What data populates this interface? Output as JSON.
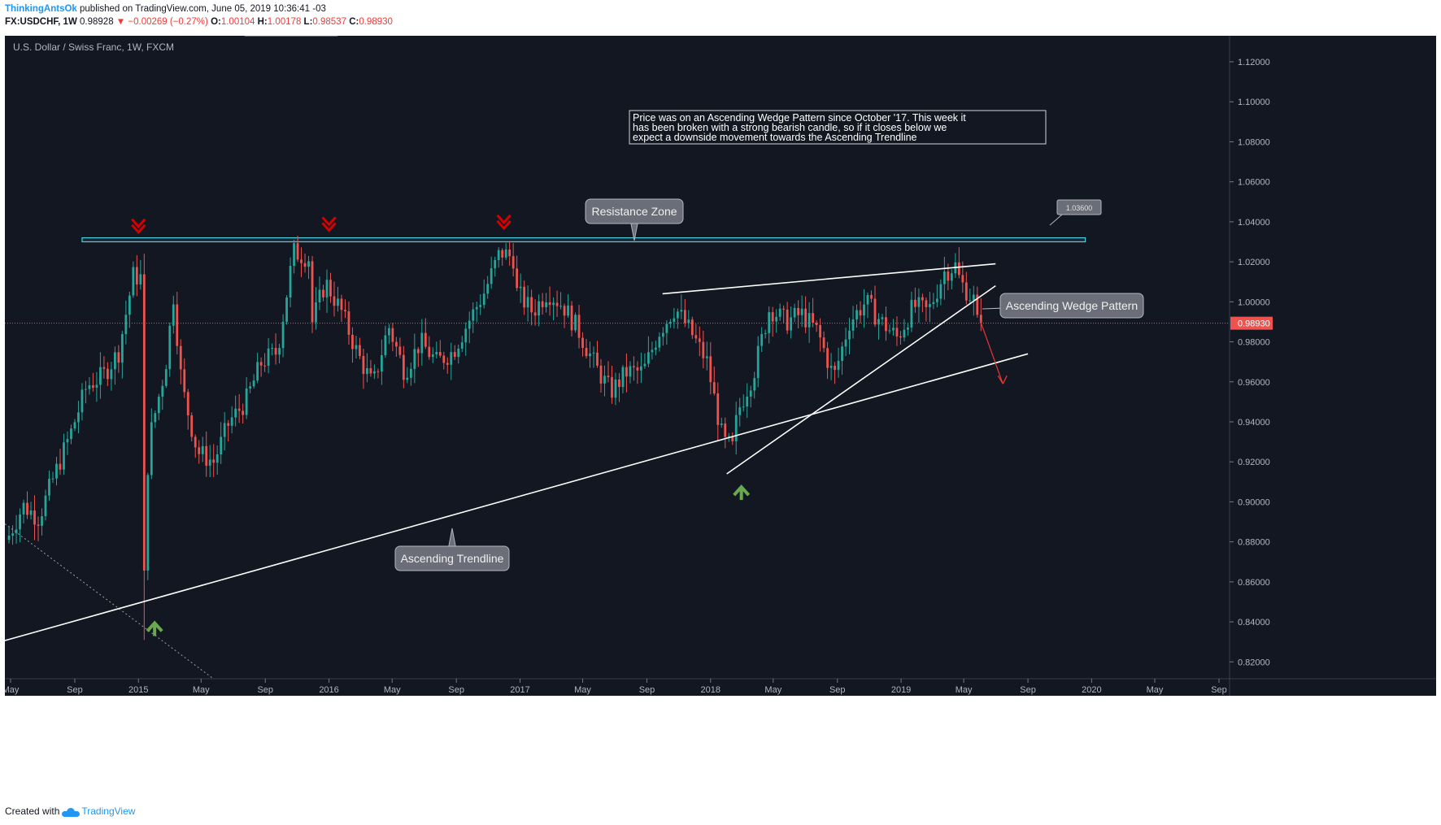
{
  "header": {
    "author": "ThinkingAntsOk",
    "published": "published on TradingView.com, June 05, 2019 10:36:41 -03",
    "symbol": "FX:USDCHF, 1W",
    "last": "0.98928",
    "change": "−0.00269 (−0.27%)",
    "o_label": "O:",
    "o_value": "1.00104",
    "h_label": "H:",
    "h_value": "1.00178",
    "l_label": "L:",
    "l_value": "0.98537",
    "c_label": "C:",
    "c_value": "0.98930"
  },
  "footer": {
    "created": "Created with",
    "brand": "TradingView"
  },
  "colors": {
    "background": "#131722",
    "up": "#26a69a",
    "down": "#ef5350",
    "resistance": "#4dd0e1",
    "arrow_red": "#d50000",
    "arrow_green": "#6aa84f"
  },
  "chart_data": {
    "type": "candlestick",
    "title": "U.S. Dollar / Swiss Franc, 1W, FXCM",
    "y_ticks": [
      "1.12000",
      "1.10000",
      "1.08000",
      "1.06000",
      "1.04000",
      "1.02000",
      "1.00000",
      "0.98000",
      "0.96000",
      "0.94000",
      "0.92000",
      "0.90000",
      "0.88000",
      "0.86000",
      "0.84000",
      "0.82000"
    ],
    "ylim": [
      0.812,
      1.133
    ],
    "x_ticks": [
      {
        "label": "May",
        "date": "2014-05"
      },
      {
        "label": "Sep",
        "date": "2014-09"
      },
      {
        "label": "2015",
        "date": "2015-01"
      },
      {
        "label": "May",
        "date": "2015-05"
      },
      {
        "label": "Sep",
        "date": "2015-09"
      },
      {
        "label": "2016",
        "date": "2016-01"
      },
      {
        "label": "May",
        "date": "2016-05"
      },
      {
        "label": "Sep",
        "date": "2016-09"
      },
      {
        "label": "2017",
        "date": "2017-01"
      },
      {
        "label": "May",
        "date": "2017-05"
      },
      {
        "label": "Sep",
        "date": "2017-09"
      },
      {
        "label": "2018",
        "date": "2018-01"
      },
      {
        "label": "May",
        "date": "2018-05"
      },
      {
        "label": "Sep",
        "date": "2018-09"
      },
      {
        "label": "2019",
        "date": "2019-01"
      },
      {
        "label": "May",
        "date": "2019-05"
      },
      {
        "label": "Sep",
        "date": "2019-09"
      },
      {
        "label": "2020",
        "date": "2020-01"
      },
      {
        "label": "May",
        "date": "2020-05"
      },
      {
        "label": "Sep",
        "date": "2020-09"
      }
    ],
    "price_anchors": [
      {
        "date": "2014-05",
        "value": 0.881
      },
      {
        "date": "2014-06",
        "value": 0.898
      },
      {
        "date": "2014-07",
        "value": 0.892
      },
      {
        "date": "2014-08",
        "value": 0.914
      },
      {
        "date": "2014-09",
        "value": 0.935
      },
      {
        "date": "2014-10",
        "value": 0.958
      },
      {
        "date": "2014-11",
        "value": 0.963
      },
      {
        "date": "2014-12",
        "value": 0.975
      },
      {
        "date": "2014-12-29",
        "value": 1.013
      },
      {
        "date": "2015-01-12",
        "value": 1.012
      },
      {
        "date": "2015-01-19",
        "value": 0.862
      },
      {
        "date": "2015-01-26",
        "value": 0.918
      },
      {
        "date": "2015-02",
        "value": 0.935
      },
      {
        "date": "2015-03",
        "value": 0.968
      },
      {
        "date": "2015-03-16",
        "value": 1.003
      },
      {
        "date": "2015-04",
        "value": 0.958
      },
      {
        "date": "2015-05",
        "value": 0.925
      },
      {
        "date": "2015-06",
        "value": 0.92
      },
      {
        "date": "2015-07",
        "value": 0.94
      },
      {
        "date": "2015-08",
        "value": 0.95
      },
      {
        "date": "2015-09",
        "value": 0.97
      },
      {
        "date": "2015-10",
        "value": 0.975
      },
      {
        "date": "2015-11",
        "value": 1.025
      },
      {
        "date": "2015-11-30",
        "value": 1.022
      },
      {
        "date": "2015-12",
        "value": 0.985
      },
      {
        "date": "2016-01",
        "value": 1.01
      },
      {
        "date": "2016-02",
        "value": 0.995
      },
      {
        "date": "2016-03",
        "value": 0.975
      },
      {
        "date": "2016-04",
        "value": 0.958
      },
      {
        "date": "2016-05",
        "value": 0.988
      },
      {
        "date": "2016-06",
        "value": 0.965
      },
      {
        "date": "2016-07",
        "value": 0.98
      },
      {
        "date": "2016-08",
        "value": 0.97
      },
      {
        "date": "2016-09",
        "value": 0.975
      },
      {
        "date": "2016-10",
        "value": 0.99
      },
      {
        "date": "2016-11",
        "value": 1.005
      },
      {
        "date": "2016-12",
        "value": 1.025
      },
      {
        "date": "2016-12-26",
        "value": 1.022
      },
      {
        "date": "2017-01",
        "value": 1.005
      },
      {
        "date": "2017-02",
        "value": 0.995
      },
      {
        "date": "2017-03",
        "value": 1.005
      },
      {
        "date": "2017-04",
        "value": 0.998
      },
      {
        "date": "2017-05",
        "value": 0.985
      },
      {
        "date": "2017-06",
        "value": 0.968
      },
      {
        "date": "2017-07",
        "value": 0.955
      },
      {
        "date": "2017-08",
        "value": 0.965
      },
      {
        "date": "2017-09",
        "value": 0.965
      },
      {
        "date": "2017-10",
        "value": 0.985
      },
      {
        "date": "2017-11",
        "value": 0.997
      },
      {
        "date": "2017-12",
        "value": 0.985
      },
      {
        "date": "2018-01",
        "value": 0.97
      },
      {
        "date": "2018-02",
        "value": 0.93
      },
      {
        "date": "2018-02-19",
        "value": 0.927
      },
      {
        "date": "2018-03",
        "value": 0.945
      },
      {
        "date": "2018-04",
        "value": 0.965
      },
      {
        "date": "2018-05",
        "value": 0.997
      },
      {
        "date": "2018-06",
        "value": 0.99
      },
      {
        "date": "2018-07",
        "value": 0.994
      },
      {
        "date": "2018-08",
        "value": 0.985
      },
      {
        "date": "2018-09",
        "value": 0.962
      },
      {
        "date": "2018-10",
        "value": 0.99
      },
      {
        "date": "2018-11",
        "value": 1.0
      },
      {
        "date": "2018-12",
        "value": 0.99
      },
      {
        "date": "2019-01",
        "value": 0.982
      },
      {
        "date": "2019-02",
        "value": 0.998
      },
      {
        "date": "2019-03",
        "value": 0.995
      },
      {
        "date": "2019-04",
        "value": 1.015
      },
      {
        "date": "2019-04-22",
        "value": 1.018
      },
      {
        "date": "2019-05",
        "value": 1.01
      },
      {
        "date": "2019-05-27",
        "value": 1.001
      },
      {
        "date": "2019-06-03",
        "value": 0.9893
      }
    ],
    "last_price": "0.98930",
    "resistance_zone": {
      "from": 1.03,
      "to": 1.032
    },
    "callout_price": "1.03600",
    "ascending_trendline": {
      "p1": {
        "date": "2014-03",
        "value": 0.827
      },
      "p2": {
        "date": "2019-09",
        "value": 0.974
      }
    },
    "wedge_upper": {
      "p1": {
        "date": "2017-10",
        "value": 1.004
      },
      "p2": {
        "date": "2019-07",
        "value": 1.019
      }
    },
    "wedge_lower": {
      "p1": {
        "date": "2018-02",
        "value": 0.914
      },
      "p2": {
        "date": "2019-07",
        "value": 1.008
      }
    },
    "projection": {
      "p1": {
        "date": "2019-06",
        "value": 0.991
      },
      "p2": {
        "date": "2019-07-15",
        "value": 0.959
      }
    },
    "red_arrows": [
      {
        "date": "2015-01",
        "value": 1.038
      },
      {
        "date": "2016-01",
        "value": 1.039
      },
      {
        "date": "2016-12",
        "value": 1.04
      }
    ],
    "green_arrows": [
      {
        "date": "2015-02",
        "value": 0.837
      },
      {
        "date": "2018-03",
        "value": 0.905
      }
    ],
    "annotations": {
      "note": "Price was on an Ascending Wedge Pattern since October '17. This week it has been broken with a strong bearish candle, so if it closes below we expect a downside movement towards the Ascending Trendline",
      "resistance_zone": "Resistance Zone",
      "ascending_wedge": "Ascending Wedge Pattern",
      "ascending_trendline": "Ascending Trendline"
    }
  }
}
